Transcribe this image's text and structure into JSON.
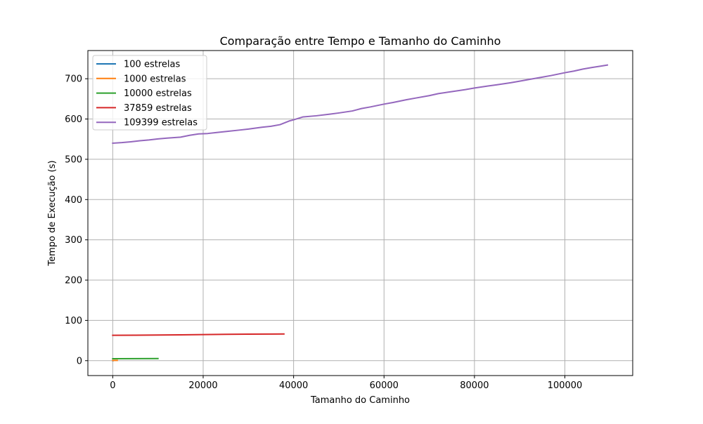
{
  "chart_data": {
    "type": "line",
    "title": "Comparação entre Tempo e Tamanho do Caminho",
    "xlabel": "Tamanho do Caminho",
    "ylabel": "Tempo de Execução (s)",
    "xlim": [
      -5500,
      115000
    ],
    "ylim": [
      -37,
      770
    ],
    "xticks": [
      0,
      20000,
      40000,
      60000,
      80000,
      100000
    ],
    "xtick_labels": [
      "0",
      "20000",
      "40000",
      "60000",
      "80000",
      "100000"
    ],
    "yticks": [
      0,
      100,
      200,
      300,
      400,
      500,
      600,
      700
    ],
    "ytick_labels": [
      "0",
      "100",
      "200",
      "300",
      "400",
      "500",
      "600",
      "700"
    ],
    "grid": true,
    "legend_position": "upper-left",
    "series": [
      {
        "name": "100 estrelas",
        "color": "#1f77b4",
        "points": [
          [
            0,
            0.1
          ],
          [
            100,
            0.1
          ]
        ]
      },
      {
        "name": "1000 estrelas",
        "color": "#ff7f0e",
        "points": [
          [
            0,
            0.5
          ],
          [
            500,
            0.6
          ],
          [
            1000,
            0.6
          ]
        ]
      },
      {
        "name": "10000 estrelas",
        "color": "#2ca02c",
        "points": [
          [
            0,
            4.8
          ],
          [
            5000,
            5.0
          ],
          [
            10000,
            5.2
          ]
        ]
      },
      {
        "name": "37859 estrelas",
        "color": "#d62728",
        "points": [
          [
            0,
            63
          ],
          [
            5000,
            63.3
          ],
          [
            10000,
            63.7
          ],
          [
            15000,
            64.1
          ],
          [
            20000,
            64.8
          ],
          [
            25000,
            65.3
          ],
          [
            30000,
            65.8
          ],
          [
            35000,
            66.1
          ],
          [
            37859,
            66.3
          ]
        ]
      },
      {
        "name": "109399 estrelas",
        "color": "#9467bd",
        "points": [
          [
            0,
            540
          ],
          [
            2000,
            541.5
          ],
          [
            4000,
            543.5
          ],
          [
            6000,
            546
          ],
          [
            8000,
            548
          ],
          [
            10000,
            550.5
          ],
          [
            12000,
            552.5
          ],
          [
            15000,
            555
          ],
          [
            17000,
            559.5
          ],
          [
            19000,
            563
          ],
          [
            21000,
            564
          ],
          [
            23000,
            566.5
          ],
          [
            25000,
            569
          ],
          [
            28000,
            572.5
          ],
          [
            30000,
            575
          ],
          [
            33000,
            579.5
          ],
          [
            35000,
            582
          ],
          [
            37000,
            586
          ],
          [
            39000,
            595
          ],
          [
            40000,
            598
          ],
          [
            42000,
            605
          ],
          [
            45000,
            608
          ],
          [
            48000,
            612
          ],
          [
            50000,
            615
          ],
          [
            53000,
            620
          ],
          [
            55000,
            626
          ],
          [
            57000,
            630
          ],
          [
            60000,
            637
          ],
          [
            62000,
            641
          ],
          [
            65000,
            648
          ],
          [
            67000,
            652
          ],
          [
            70000,
            658
          ],
          [
            72000,
            663
          ],
          [
            75000,
            668
          ],
          [
            78000,
            673
          ],
          [
            80000,
            677
          ],
          [
            83000,
            682
          ],
          [
            85000,
            685
          ],
          [
            88000,
            690
          ],
          [
            90000,
            694
          ],
          [
            93000,
            700
          ],
          [
            95000,
            704
          ],
          [
            97000,
            708
          ],
          [
            100000,
            715
          ],
          [
            102000,
            719
          ],
          [
            104000,
            724
          ],
          [
            106000,
            728
          ],
          [
            108000,
            731.5
          ],
          [
            109399,
            734
          ]
        ]
      }
    ]
  }
}
